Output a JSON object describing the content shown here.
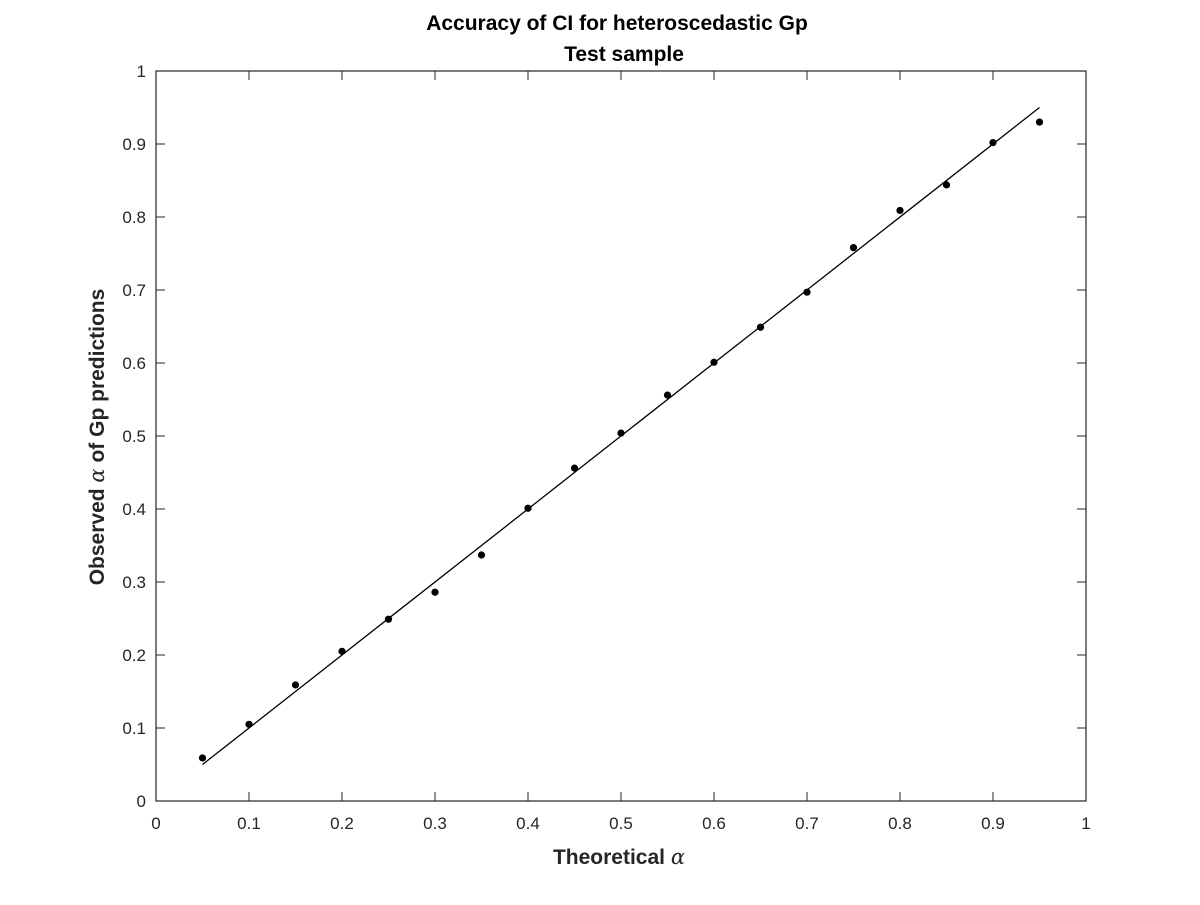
{
  "chart_data": {
    "type": "scatter",
    "title": "Accuracy of CI for heteroscedastic Gp",
    "subtitle": "Test sample",
    "xlabel": {
      "prefix": "Theoretical ",
      "symbol": "α",
      "suffix": ""
    },
    "ylabel": {
      "prefix": "Observed ",
      "symbol": "α",
      "suffix": " of Gp predictions"
    },
    "xlim": [
      0,
      1
    ],
    "ylim": [
      0,
      1
    ],
    "xticks": [
      0,
      0.1,
      0.2,
      0.3,
      0.4,
      0.5,
      0.6,
      0.7,
      0.8,
      0.9,
      1
    ],
    "yticks": [
      0,
      0.1,
      0.2,
      0.3,
      0.4,
      0.5,
      0.6,
      0.7,
      0.8,
      0.9,
      1
    ],
    "xtick_labels": [
      "0",
      "0.1",
      "0.2",
      "0.3",
      "0.4",
      "0.5",
      "0.6",
      "0.7",
      "0.8",
      "0.9",
      "1"
    ],
    "ytick_labels": [
      "0",
      "0.1",
      "0.2",
      "0.3",
      "0.4",
      "0.5",
      "0.6",
      "0.7",
      "0.8",
      "0.9",
      "1"
    ],
    "grid": false,
    "legend": "none",
    "series": [
      {
        "kind": "markers",
        "color": "#000000",
        "x": [
          0.05,
          0.1,
          0.15,
          0.2,
          0.25,
          0.3,
          0.35,
          0.4,
          0.45,
          0.5,
          0.55,
          0.6,
          0.65,
          0.7,
          0.75,
          0.8,
          0.85,
          0.9,
          0.95
        ],
        "y": [
          0.059,
          0.105,
          0.159,
          0.205,
          0.249,
          0.286,
          0.337,
          0.401,
          0.456,
          0.504,
          0.556,
          0.601,
          0.649,
          0.697,
          0.758,
          0.809,
          0.844,
          0.902,
          0.93
        ]
      },
      {
        "kind": "line",
        "color": "#000000",
        "x": [
          0.05,
          0.95
        ],
        "y": [
          0.05,
          0.95
        ]
      }
    ]
  }
}
